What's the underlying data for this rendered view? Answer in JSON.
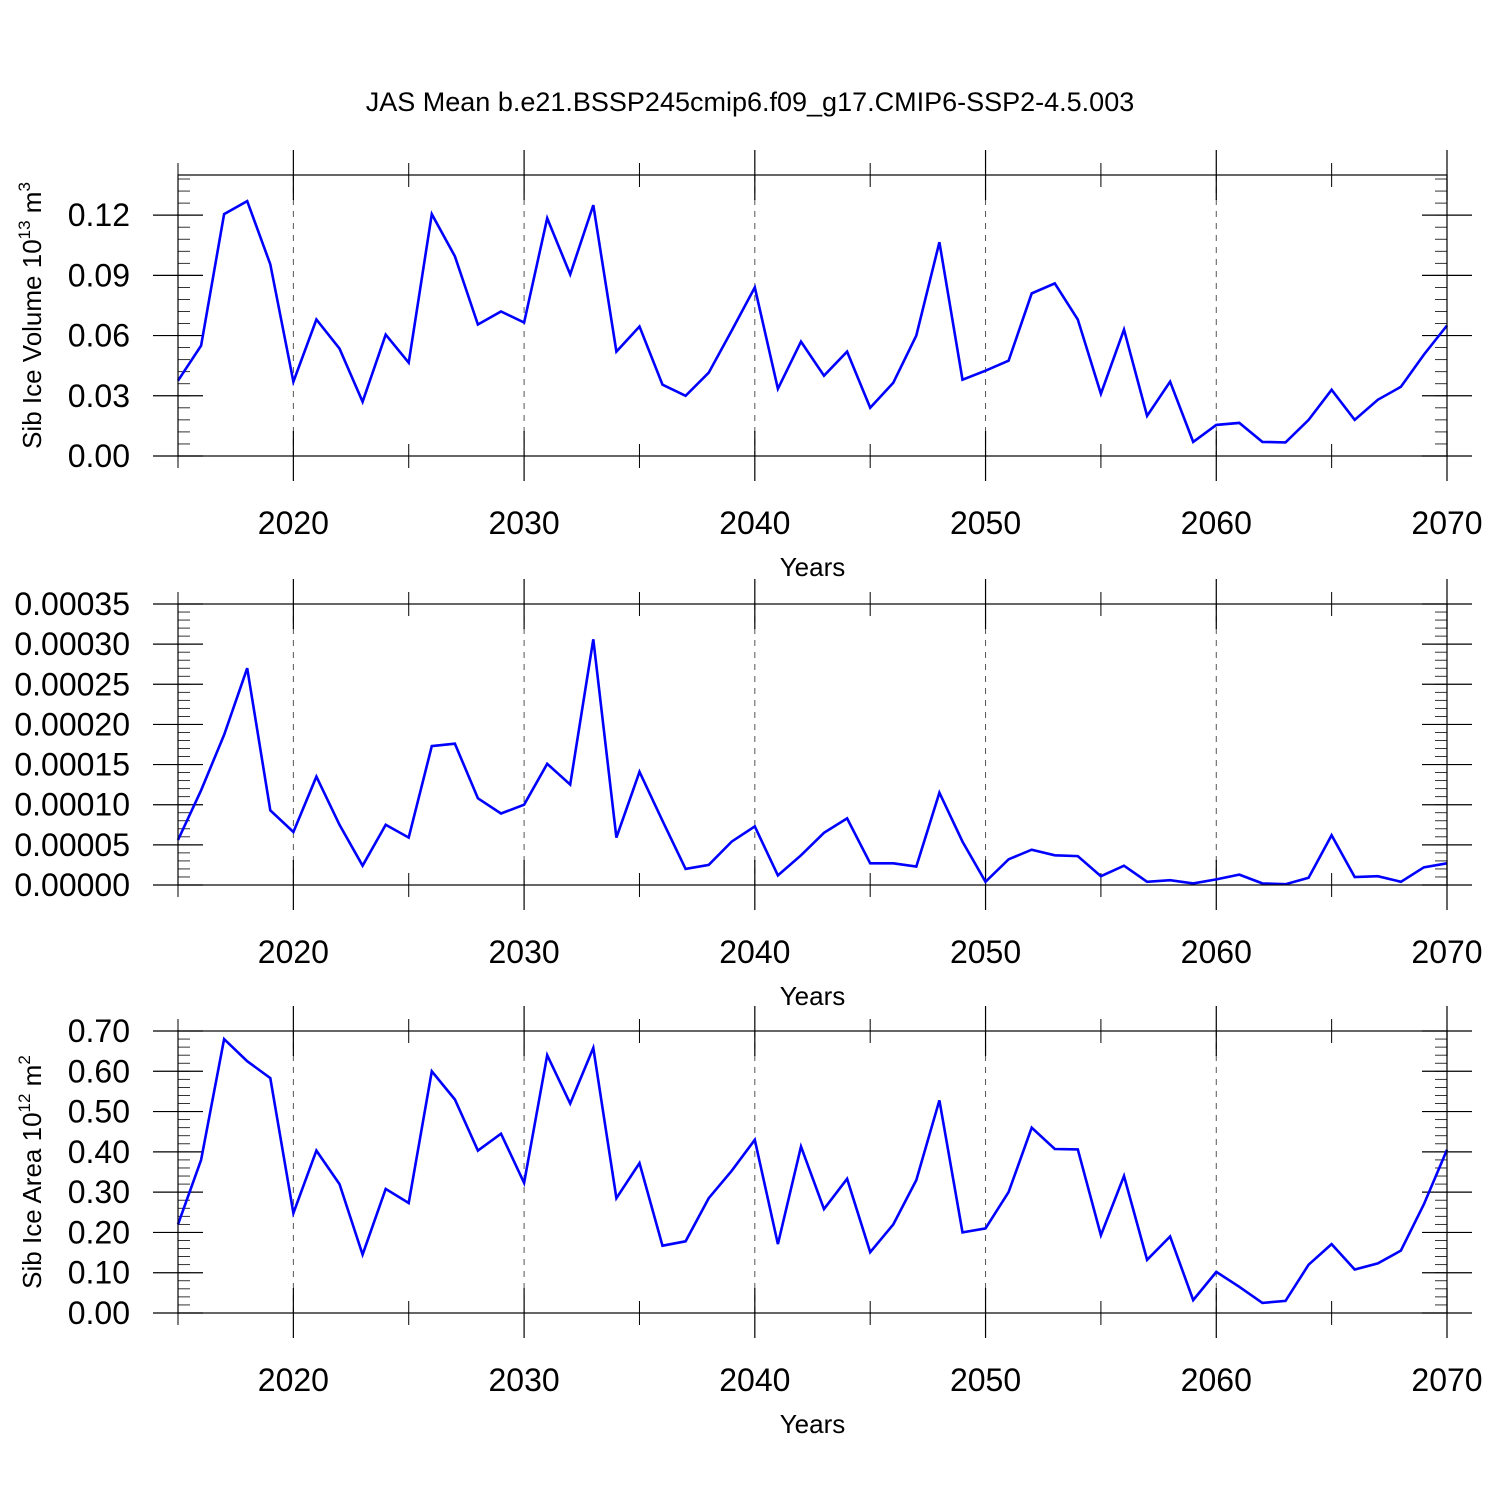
{
  "title": "JAS Mean b.e21.BSSP245cmip6.f09_g17.CMIP6-SSP2-4.5.003",
  "line_color": "#0000ff",
  "chart_data": [
    {
      "type": "line",
      "name": "ice-volume",
      "ylabel": "Sib Ice Volume 10",
      "ylabel_sup": "13",
      "ylabel_unit": " m",
      "ylabel_unit_sup": "3",
      "xlabel": "Years",
      "xlim": [
        2015,
        2070
      ],
      "ylim": [
        0,
        0.14
      ],
      "xticks": [
        "2020",
        "2030",
        "2040",
        "2050",
        "2060",
        "2070"
      ],
      "yticks": [
        "0.00",
        "0.03",
        "0.06",
        "0.09",
        "0.12"
      ],
      "ytick_values": [
        0,
        0.03,
        0.06,
        0.09,
        0.12
      ],
      "x": [
        2015,
        2016,
        2017,
        2018,
        2019,
        2020,
        2021,
        2022,
        2023,
        2024,
        2025,
        2026,
        2027,
        2028,
        2029,
        2030,
        2031,
        2032,
        2033,
        2034,
        2035,
        2036,
        2037,
        2038,
        2039,
        2040,
        2041,
        2042,
        2043,
        2044,
        2045,
        2046,
        2047,
        2048,
        2049,
        2050,
        2051,
        2052,
        2053,
        2054,
        2055,
        2056,
        2057,
        2058,
        2059,
        2060,
        2061,
        2062,
        2063,
        2064,
        2065,
        2066,
        2067,
        2068,
        2069,
        2070
      ],
      "values": [
        0.0375,
        0.055,
        0.1205,
        0.127,
        0.0955,
        0.037,
        0.068,
        0.0535,
        0.027,
        0.0605,
        0.0465,
        0.1205,
        0.0995,
        0.0655,
        0.072,
        0.0665,
        0.1185,
        0.0905,
        0.125,
        0.052,
        0.0645,
        0.0355,
        0.03,
        0.0415,
        0.0625,
        0.084,
        0.0335,
        0.057,
        0.04,
        0.052,
        0.024,
        0.0365,
        0.06,
        0.1065,
        0.038,
        0.0425,
        0.0475,
        0.081,
        0.086,
        0.068,
        0.031,
        0.063,
        0.02,
        0.037,
        0.007,
        0.0155,
        0.0165,
        0.007,
        0.0068,
        0.018,
        0.033,
        0.018,
        0.028,
        0.0345,
        0.0505,
        0.065
      ]
    },
    {
      "type": "line",
      "name": "ice-thickness",
      "ylabel": "",
      "xlabel": "Years",
      "xlim": [
        2015,
        2070
      ],
      "ylim": [
        0,
        0.00035
      ],
      "xticks": [
        "2020",
        "2030",
        "2040",
        "2050",
        "2060",
        "2070"
      ],
      "yticks": [
        "0.00000",
        "0.00005",
        "0.00010",
        "0.00015",
        "0.00020",
        "0.00025",
        "0.00030",
        "0.00035"
      ],
      "ytick_values": [
        0,
        5e-05,
        0.0001,
        0.00015,
        0.0002,
        0.00025,
        0.0003,
        0.00035
      ],
      "x": [
        2015,
        2016,
        2017,
        2018,
        2019,
        2020,
        2021,
        2022,
        2023,
        2024,
        2025,
        2026,
        2027,
        2028,
        2029,
        2030,
        2031,
        2032,
        2033,
        2034,
        2035,
        2036,
        2037,
        2038,
        2039,
        2040,
        2041,
        2042,
        2043,
        2044,
        2045,
        2046,
        2047,
        2048,
        2049,
        2050,
        2051,
        2052,
        2053,
        2054,
        2055,
        2056,
        2057,
        2058,
        2059,
        2060,
        2061,
        2062,
        2063,
        2064,
        2065,
        2066,
        2067,
        2068,
        2069,
        2070
      ],
      "values": [
        5.6e-05,
        0.000118,
        0.000187,
        0.00027,
        9.3e-05,
        6.6e-05,
        0.000135,
        7.5e-05,
        2.4e-05,
        7.5e-05,
        5.9e-05,
        0.000173,
        0.000176,
        0.000108,
        8.9e-05,
        0.0001,
        0.000151,
        0.000125,
        0.000306,
        5.9e-05,
        0.000141,
        8e-05,
        2e-05,
        2.5e-05,
        5.4e-05,
        7.3e-05,
        1.2e-05,
        3.7e-05,
        6.5e-05,
        8.3e-05,
        2.7e-05,
        2.7e-05,
        2.3e-05,
        0.000115,
        5.4e-05,
        4e-06,
        3.2e-05,
        4.4e-05,
        3.7e-05,
        3.6e-05,
        1.1e-05,
        2.4e-05,
        4e-06,
        6e-06,
        2e-06,
        7e-06,
        1.3e-05,
        2e-06,
        1e-06,
        9e-06,
        6.2e-05,
        1e-05,
        1.1e-05,
        4e-06,
        2.2e-05,
        2.7e-05
      ]
    },
    {
      "type": "line",
      "name": "ice-area",
      "ylabel": "Sib Ice Area 10",
      "ylabel_sup": "12",
      "ylabel_unit": " m",
      "ylabel_unit_sup": "2",
      "xlabel": "Years",
      "xlim": [
        2015,
        2070
      ],
      "ylim": [
        0,
        0.7
      ],
      "xticks": [
        "2020",
        "2030",
        "2040",
        "2050",
        "2060",
        "2070"
      ],
      "yticks": [
        "0.00",
        "0.10",
        "0.20",
        "0.30",
        "0.40",
        "0.50",
        "0.60",
        "0.70"
      ],
      "ytick_values": [
        0,
        0.1,
        0.2,
        0.3,
        0.4,
        0.5,
        0.6,
        0.7
      ],
      "x": [
        2015,
        2016,
        2017,
        2018,
        2019,
        2020,
        2021,
        2022,
        2023,
        2024,
        2025,
        2026,
        2027,
        2028,
        2029,
        2030,
        2031,
        2032,
        2033,
        2034,
        2035,
        2036,
        2037,
        2038,
        2039,
        2040,
        2041,
        2042,
        2043,
        2044,
        2045,
        2046,
        2047,
        2048,
        2049,
        2050,
        2051,
        2052,
        2053,
        2054,
        2055,
        2056,
        2057,
        2058,
        2059,
        2060,
        2061,
        2062,
        2063,
        2064,
        2065,
        2066,
        2067,
        2068,
        2069,
        2070
      ],
      "values": [
        0.22,
        0.38,
        0.68,
        0.625,
        0.583,
        0.248,
        0.403,
        0.32,
        0.145,
        0.308,
        0.273,
        0.6,
        0.53,
        0.403,
        0.445,
        0.323,
        0.64,
        0.52,
        0.658,
        0.285,
        0.372,
        0.167,
        0.178,
        0.285,
        0.353,
        0.43,
        0.171,
        0.413,
        0.258,
        0.333,
        0.151,
        0.22,
        0.33,
        0.528,
        0.2,
        0.21,
        0.3,
        0.46,
        0.407,
        0.406,
        0.193,
        0.34,
        0.132,
        0.19,
        0.032,
        0.102,
        0.065,
        0.025,
        0.03,
        0.12,
        0.171,
        0.108,
        0.123,
        0.155,
        0.27,
        0.405
      ]
    }
  ]
}
